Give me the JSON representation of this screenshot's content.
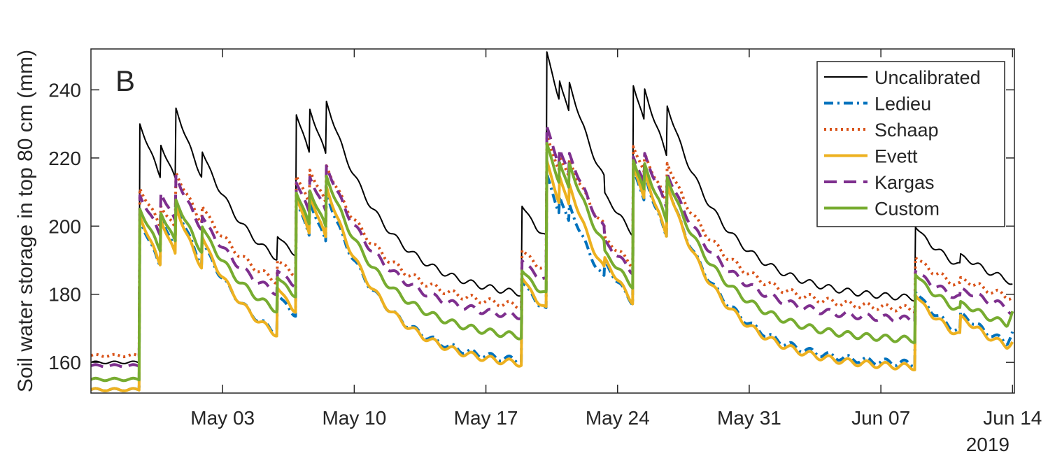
{
  "chart_data": {
    "type": "line",
    "panel_label": "B",
    "ylabel": "Soil water storage in top 80 cm (mm)",
    "xlabel": "",
    "year_label": "2019",
    "x_range": [
      "2019-04-26",
      "2019-06-14"
    ],
    "ylim": [
      151,
      252
    ],
    "x_ticks": [
      {
        "date": "2019-05-03",
        "label": "May 03"
      },
      {
        "date": "2019-05-10",
        "label": "May 10"
      },
      {
        "date": "2019-05-17",
        "label": "May 17"
      },
      {
        "date": "2019-05-24",
        "label": "May 24"
      },
      {
        "date": "2019-05-31",
        "label": "May 31"
      },
      {
        "date": "2019-06-07",
        "label": "Jun 07"
      },
      {
        "date": "2019-06-14",
        "label": "Jun 14"
      }
    ],
    "y_ticks": [
      160,
      180,
      200,
      220,
      240
    ],
    "grid": false,
    "legend_position": "top-right",
    "events": [
      {
        "date": "2019-04-28.6",
        "t": 2.6
      },
      {
        "date": "2019-04-29.7",
        "t": 3.7
      },
      {
        "date": "2019-04-30.5",
        "t": 4.5
      },
      {
        "date": "2019-05-01.9",
        "t": 5.9
      },
      {
        "date": "2019-05-05.9",
        "t": 9.9
      },
      {
        "date": "2019-05-06.9",
        "t": 10.9
      },
      {
        "date": "2019-05-07.6",
        "t": 11.6
      },
      {
        "date": "2019-05-08.5",
        "t": 12.5
      },
      {
        "date": "2019-05-18.9",
        "t": 22.9
      },
      {
        "date": "2019-05-20.2",
        "t": 24.2
      },
      {
        "date": "2019-05-20.9",
        "t": 24.9
      },
      {
        "date": "2019-05-21.4",
        "t": 25.4
      },
      {
        "date": "2019-05-23.3",
        "t": 27.3
      },
      {
        "date": "2019-05-24.8",
        "t": 28.8
      },
      {
        "date": "2019-05-25.4",
        "t": 29.4
      },
      {
        "date": "2019-05-26.6",
        "t": 30.6
      },
      {
        "date": "2019-06-08.8",
        "t": 43.8
      },
      {
        "date": "2019-06-11.2",
        "t": 46.2
      }
    ],
    "series": [
      {
        "name": "Uncalibrated",
        "color": "#000000",
        "width": 2,
        "dash": "",
        "pre": 160,
        "floor": 178,
        "tau": 3.2,
        "peaks": [
          230,
          224,
          235,
          222,
          197,
          233,
          235,
          237,
          206,
          252,
          243,
          243,
          210,
          242,
          241,
          236,
          200,
          192
        ],
        "end": 183
      },
      {
        "name": "Ledieu",
        "color": "#0072BD",
        "width": 4,
        "dash": "13 6 3 6",
        "pre": 152,
        "floor": 159,
        "tau": 3.0,
        "peaks": [
          202,
          203,
          207,
          196,
          180,
          208,
          208,
          210,
          184,
          216,
          209,
          207,
          190,
          218,
          216,
          213,
          181,
          175
        ],
        "end": 169
      },
      {
        "name": "Schaap",
        "color": "#D95319",
        "width": 4,
        "dash": "3 5",
        "pre": 162,
        "floor": 175,
        "tau": 3.2,
        "peaks": [
          211,
          206,
          216,
          206,
          190,
          215,
          217,
          218,
          193,
          227,
          221,
          220,
          197,
          224,
          222,
          219,
          191,
          185
        ],
        "end": 179
      },
      {
        "name": "Evett",
        "color": "#EDB120",
        "width": 4,
        "dash": "",
        "pre": 152,
        "floor": 158,
        "tau": 3.0,
        "peaks": [
          203,
          202,
          206,
          197,
          182,
          209,
          210,
          212,
          185,
          220,
          215,
          213,
          191,
          219,
          217,
          213,
          180,
          174
        ],
        "end": 166
      },
      {
        "name": "Kargas",
        "color": "#7E2F8E",
        "width": 4,
        "dash": "18 10",
        "pre": 159,
        "floor": 172,
        "tau": 3.1,
        "peaks": [
          209,
          210,
          215,
          203,
          187,
          213,
          215,
          218,
          190,
          230,
          223,
          222,
          196,
          221,
          222,
          216,
          187,
          182
        ],
        "end": 174
      },
      {
        "name": "Custom",
        "color": "#77AC30",
        "width": 4,
        "dash": "",
        "pre": 155,
        "floor": 166,
        "tau": 3.1,
        "peaks": [
          205,
          204,
          208,
          200,
          185,
          210,
          211,
          215,
          187,
          225,
          219,
          219,
          193,
          220,
          219,
          215,
          186,
          178
        ],
        "end": 175
      }
    ]
  }
}
